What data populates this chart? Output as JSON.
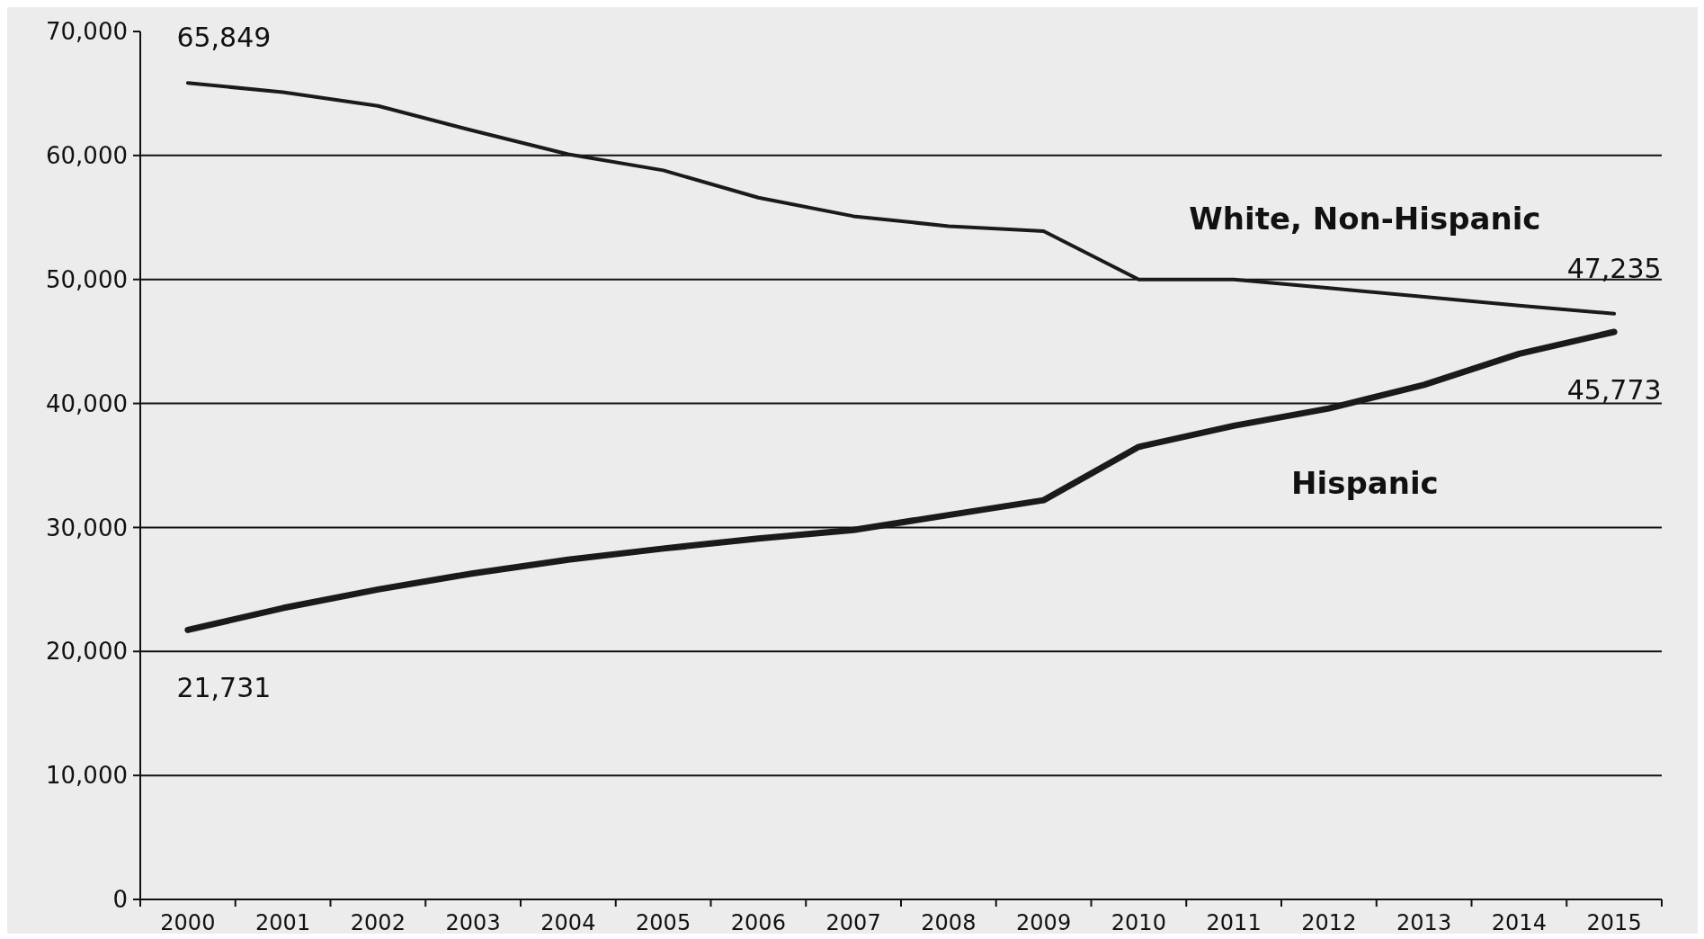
{
  "chart_data": {
    "type": "line",
    "categories": [
      "2000",
      "2001",
      "2002",
      "2003",
      "2004",
      "2005",
      "2006",
      "2007",
      "2008",
      "2009",
      "2010",
      "2011",
      "2012",
      "2013",
      "2014",
      "2015"
    ],
    "series": [
      {
        "name": "White, Non-Hispanic",
        "color": "#1a1a1a",
        "values": [
          65849,
          65100,
          64000,
          62000,
          60100,
          58800,
          56600,
          55100,
          54300,
          53900,
          50000,
          50000,
          49300,
          48600,
          47900,
          47235
        ],
        "value_labels": [
          "65,849",
          null,
          null,
          null,
          null,
          null,
          null,
          null,
          null,
          null,
          null,
          null,
          null,
          null,
          null,
          "47,235"
        ]
      },
      {
        "name": "Hispanic",
        "color": "#1a1a1a",
        "values": [
          21731,
          23500,
          25000,
          26300,
          27400,
          28300,
          29100,
          29800,
          31000,
          32200,
          36500,
          38200,
          39600,
          41500,
          44000,
          45773
        ],
        "value_labels": [
          "21,731",
          null,
          null,
          null,
          null,
          null,
          null,
          null,
          null,
          null,
          null,
          null,
          null,
          null,
          null,
          "45,773"
        ]
      }
    ],
    "ylim": [
      0,
      70000
    ],
    "yticks": [
      {
        "value": 0,
        "label": "0"
      },
      {
        "value": 10000,
        "label": "10,000"
      },
      {
        "value": 20000,
        "label": "20,000"
      },
      {
        "value": 30000,
        "label": "30,000"
      },
      {
        "value": 40000,
        "label": "40,000"
      },
      {
        "value": 50000,
        "label": "50,000"
      },
      {
        "value": 60000,
        "label": "60,000"
      },
      {
        "value": 70000,
        "label": "70,000"
      }
    ],
    "grid": "y"
  }
}
